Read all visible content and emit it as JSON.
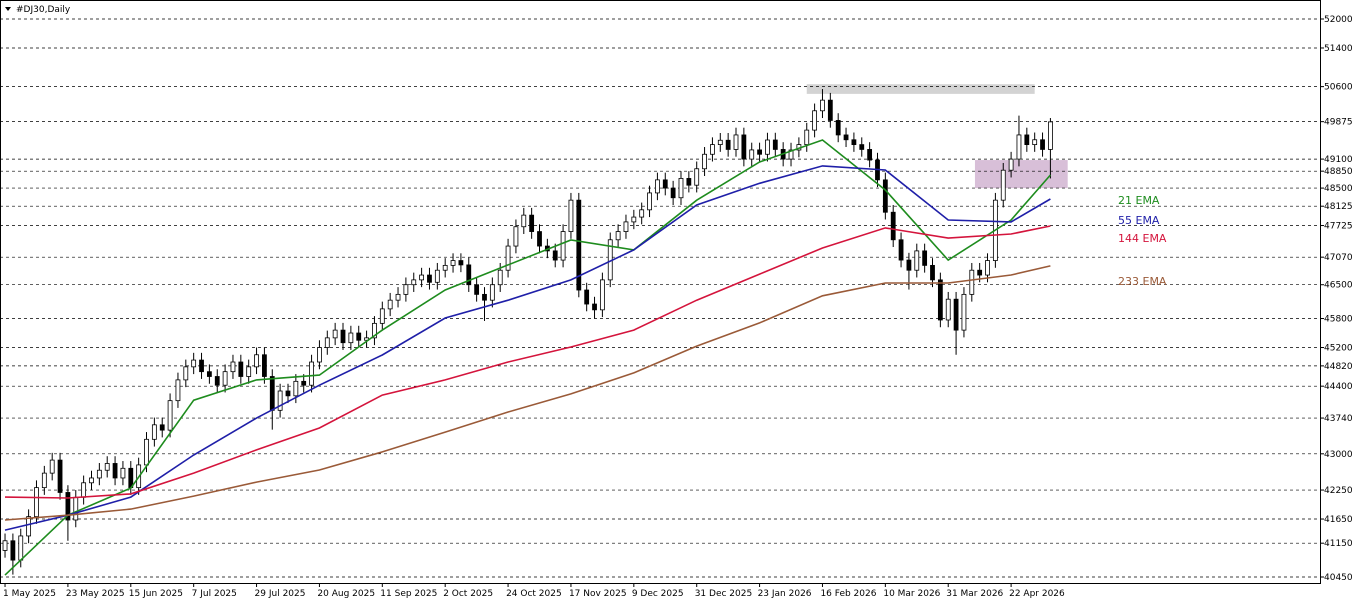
{
  "chart_data": {
    "type": "candlestick",
    "title": "#DJ30,Daily",
    "xlim": [
      -0.64,
      167.3
    ],
    "ylim": [
      40326,
      52393
    ],
    "grid": true,
    "xticks": [
      {
        "value": 0,
        "label": "1 May 2025"
      },
      {
        "value": 8,
        "label": "23 May 2025"
      },
      {
        "value": 16,
        "label": "15 Jun 2025"
      },
      {
        "value": 24,
        "label": "7 Jul 2025"
      },
      {
        "value": 32,
        "label": "29 Jul 2025"
      },
      {
        "value": 40,
        "label": "20 Aug 2025"
      },
      {
        "value": 48,
        "label": "11 Sep 2025"
      },
      {
        "value": 56,
        "label": "2 Oct 2025"
      },
      {
        "value": 64,
        "label": "24 Oct 2025"
      },
      {
        "value": 72,
        "label": "17 Nov 2025"
      },
      {
        "value": 80,
        "label": "9 Dec 2025"
      },
      {
        "value": 88,
        "label": "31 Dec 2025"
      },
      {
        "value": 96,
        "label": "23 Jan 2026"
      },
      {
        "value": 104,
        "label": "16 Feb 2026"
      },
      {
        "value": 112,
        "label": "10 Mar 2026"
      },
      {
        "value": 120,
        "label": "31 Mar 2026"
      },
      {
        "value": 128,
        "label": "22 Apr 2026"
      }
    ],
    "yticks": [
      52000,
      51400,
      50600,
      49875,
      49100,
      48850,
      48500,
      48125,
      47725,
      47070,
      46500,
      45800,
      45200,
      44820,
      44400,
      43740,
      43000,
      42250,
      41650,
      41150,
      40450
    ],
    "candles": {
      "up_color": "#ffffff",
      "down_color": "#000000",
      "open": [
        41000,
        41200,
        40800,
        41300,
        41700,
        42300,
        42600,
        42870,
        42200,
        41630,
        42100,
        42400,
        42500,
        42660,
        42800,
        42500,
        42700,
        42300,
        42770,
        43300,
        43600,
        43490,
        44100,
        44530,
        44800,
        44940,
        44700,
        44600,
        44420,
        44700,
        44900,
        44600,
        44800,
        45050,
        44600,
        43900,
        44300,
        44200,
        44500,
        44420,
        44900,
        45200,
        45400,
        45560,
        45300,
        45500,
        45350,
        45400,
        45700,
        46000,
        46180,
        46300,
        46500,
        46600,
        46700,
        46550,
        46800,
        46900,
        47000,
        46910,
        46500,
        46300,
        46180,
        46500,
        46800,
        47300,
        47700,
        47940,
        47600,
        47300,
        47200,
        47010,
        47600,
        48250,
        46390,
        46100,
        45980,
        46600,
        47430,
        47600,
        47800,
        47900,
        48050,
        48400,
        48670,
        48500,
        48300,
        48700,
        48560,
        48900,
        49200,
        49400,
        49490,
        49300,
        49600,
        49100,
        49290,
        49200,
        49495,
        49300,
        49100,
        49288,
        49400,
        49700,
        50100,
        50320,
        49900,
        49600,
        49500,
        49400,
        49300,
        49080,
        48670,
        48000,
        47430,
        47010,
        46800,
        47200,
        46900,
        46600,
        45770,
        46200,
        45560,
        46300,
        46800,
        46700,
        47000,
        48250,
        48870,
        49100,
        49600,
        49400,
        49500,
        49300
      ],
      "high": [
        41350,
        41350,
        41450,
        41850,
        42450,
        42750,
        43020,
        43020,
        42350,
        42250,
        42550,
        42650,
        42810,
        42950,
        42950,
        42850,
        42850,
        42920,
        43450,
        43750,
        43750,
        44250,
        44680,
        44950,
        45090,
        45090,
        44850,
        44750,
        44850,
        45050,
        45050,
        44950,
        45200,
        45200,
        44750,
        44450,
        44450,
        44650,
        44650,
        45050,
        45350,
        45550,
        45710,
        45710,
        45650,
        45650,
        45550,
        45850,
        46150,
        46330,
        46450,
        46650,
        46750,
        46850,
        46850,
        46950,
        47050,
        47150,
        47150,
        47060,
        46650,
        46450,
        46650,
        46950,
        47450,
        47850,
        48090,
        48090,
        47750,
        47450,
        47350,
        47750,
        48400,
        48400,
        46540,
        46250,
        46750,
        47580,
        47750,
        47950,
        48050,
        48200,
        48550,
        48820,
        48820,
        48650,
        48850,
        48850,
        49050,
        49350,
        49550,
        49640,
        49640,
        49750,
        49750,
        49440,
        49440,
        49645,
        49645,
        49450,
        49438,
        49550,
        49850,
        50250,
        50550,
        50470,
        50050,
        49750,
        49650,
        49550,
        49450,
        49230,
        48820,
        48150,
        47580,
        47160,
        47350,
        47350,
        47050,
        46750,
        46350,
        46350,
        46450,
        46950,
        46950,
        47150,
        48400,
        49020,
        49250,
        50000,
        49750,
        49650,
        49650,
        49950
      ],
      "low": [
        40850,
        40500,
        40650,
        41150,
        41550,
        42150,
        42450,
        42050,
        41200,
        41480,
        41950,
        42250,
        42350,
        42510,
        42350,
        42350,
        42150,
        42150,
        42620,
        43150,
        43340,
        43340,
        43950,
        44380,
        44650,
        44550,
        44450,
        44270,
        44270,
        44550,
        44450,
        44450,
        44650,
        44450,
        43500,
        43750,
        44050,
        44050,
        44270,
        44270,
        44750,
        45050,
        45250,
        45150,
        45150,
        45200,
        45200,
        45250,
        45550,
        45850,
        46030,
        46150,
        46350,
        46450,
        46400,
        46400,
        46650,
        46750,
        46760,
        46350,
        46150,
        45750,
        46030,
        46350,
        46650,
        47150,
        47550,
        47450,
        47150,
        47050,
        46860,
        46860,
        47450,
        46240,
        45950,
        45800,
        45830,
        46450,
        47280,
        47450,
        47650,
        47750,
        47900,
        48250,
        48350,
        48150,
        48150,
        48410,
        48410,
        48750,
        49050,
        49250,
        49150,
        49150,
        48950,
        48950,
        49050,
        49050,
        49150,
        48950,
        48950,
        49138,
        49250,
        49550,
        49950,
        49750,
        49450,
        49350,
        49250,
        49150,
        48930,
        48520,
        47850,
        47280,
        46860,
        46400,
        46650,
        46750,
        46450,
        45620,
        45620,
        45050,
        45410,
        46150,
        46550,
        46550,
        46850,
        48100,
        48720,
        48950,
        49250,
        49250,
        49150,
        48700
      ],
      "close": [
        41200,
        40800,
        41300,
        41700,
        42300,
        42600,
        42870,
        42200,
        41630,
        42100,
        42400,
        42500,
        42660,
        42800,
        42500,
        42700,
        42300,
        42770,
        43300,
        43600,
        43490,
        44100,
        44530,
        44800,
        44940,
        44700,
        44600,
        44420,
        44700,
        44900,
        44600,
        44800,
        45050,
        44600,
        43900,
        44300,
        44200,
        44500,
        44420,
        44900,
        45200,
        45400,
        45560,
        45300,
        45500,
        45350,
        45400,
        45700,
        46000,
        46180,
        46300,
        46500,
        46600,
        46700,
        46550,
        46800,
        46900,
        47000,
        46910,
        46500,
        46300,
        46180,
        46500,
        46800,
        47300,
        47700,
        47940,
        47600,
        47300,
        47200,
        47010,
        47600,
        48250,
        46390,
        46100,
        45980,
        46600,
        47430,
        47600,
        47800,
        47900,
        48050,
        48400,
        48670,
        48500,
        48300,
        48700,
        48560,
        48900,
        49200,
        49400,
        49490,
        49300,
        49600,
        49100,
        49290,
        49200,
        49495,
        49300,
        49100,
        49288,
        49400,
        49700,
        50100,
        50320,
        49900,
        49600,
        49500,
        49400,
        49300,
        49080,
        48670,
        48000,
        47430,
        47010,
        46800,
        47200,
        46900,
        46600,
        45770,
        46200,
        45560,
        46300,
        46800,
        46700,
        47000,
        48250,
        48870,
        49100,
        49600,
        49400,
        49500,
        49300,
        49870
      ]
    },
    "series": [
      {
        "name": "21 EMA",
        "color": "#1e8c1e",
        "x": [
          0,
          8,
          16,
          24,
          32,
          40,
          48,
          56,
          64,
          72,
          80,
          88,
          96,
          104,
          112,
          120,
          128,
          133
        ],
        "values": [
          40490,
          41730,
          42290,
          44110,
          44530,
          44630,
          45560,
          46390,
          46910,
          47425,
          47220,
          48250,
          49040,
          49495,
          48460,
          47010,
          47840,
          48770
        ]
      },
      {
        "name": "55 EMA",
        "color": "#1f1fa8",
        "x": [
          0,
          8,
          16,
          24,
          32,
          40,
          48,
          56,
          64,
          72,
          80,
          88,
          96,
          104,
          112,
          120,
          128,
          133
        ],
        "values": [
          41420,
          41730,
          42105,
          42975,
          43740,
          44420,
          45045,
          45810,
          46180,
          46600,
          47220,
          48150,
          48600,
          48960,
          48875,
          47840,
          47800,
          48275
        ]
      },
      {
        "name": "144 EMA",
        "color": "#d4143c",
        "x": [
          0,
          8,
          16,
          24,
          32,
          40,
          48,
          56,
          64,
          72,
          80,
          88,
          96,
          104,
          112,
          120,
          128,
          133
        ],
        "values": [
          42105,
          42085,
          42170,
          42600,
          43080,
          43535,
          44215,
          44530,
          44900,
          45210,
          45560,
          46180,
          46720,
          47260,
          47675,
          47465,
          47550,
          47715
        ]
      },
      {
        "name": "233 EMA",
        "color": "#9a5a38",
        "x": [
          0,
          8,
          16,
          24,
          32,
          40,
          48,
          56,
          64,
          72,
          80,
          88,
          96,
          104,
          112,
          120,
          128,
          133
        ],
        "values": [
          41630,
          41730,
          41855,
          42125,
          42415,
          42665,
          43040,
          43450,
          43865,
          44240,
          44675,
          45230,
          45710,
          46270,
          46535,
          46535,
          46700,
          46890
        ]
      }
    ],
    "zones": [
      {
        "x": [
          102,
          131
        ],
        "y": [
          50450,
          50650
        ],
        "color": "#d3d3d3"
      },
      {
        "x": [
          123.4,
          135.2
        ],
        "y": [
          48500,
          49080
        ],
        "color": "#d8bfd8"
      }
    ]
  }
}
